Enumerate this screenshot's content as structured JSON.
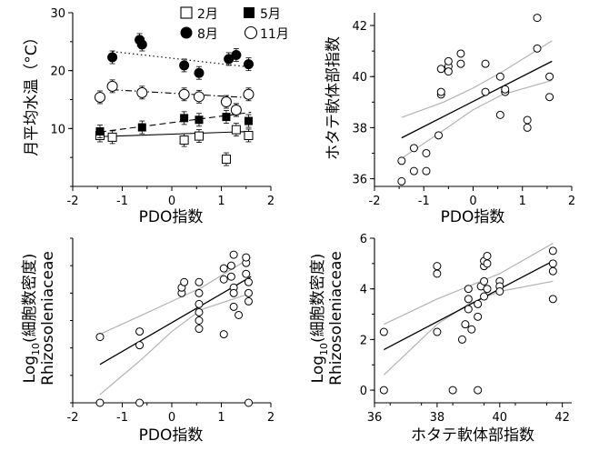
{
  "chart_data": [
    {
      "id": "temp_vs_pdo",
      "type": "scatter",
      "xlabel": "PDO指数",
      "ylabel": "月平均水温（°C）",
      "xlim": [
        -2,
        2
      ],
      "ylim": [
        0,
        30
      ],
      "xticks": [
        "-2",
        "-1",
        "0",
        "1",
        "2"
      ],
      "yticks": [
        "10",
        "20",
        "30"
      ],
      "legend_position": "top-center",
      "series": [
        {
          "name": "2月",
          "marker": "open-square",
          "line": "solid",
          "points": [
            [
              -1.45,
              8.8
            ],
            [
              -1.2,
              8.5
            ],
            [
              0.25,
              8.0
            ],
            [
              0.55,
              8.7
            ],
            [
              1.1,
              4.7
            ],
            [
              1.3,
              9.8
            ],
            [
              1.55,
              8.8
            ]
          ],
          "trend": [
            [
              -1.45,
              8.6
            ],
            [
              1.6,
              9.5
            ]
          ]
        },
        {
          "name": "5月",
          "marker": "filled-square",
          "line": "dashed",
          "points": [
            [
              -1.45,
              9.5
            ],
            [
              -0.6,
              10.2
            ],
            [
              0.25,
              11.8
            ],
            [
              0.55,
              11.5
            ],
            [
              1.1,
              12.0
            ],
            [
              1.3,
              13.2
            ],
            [
              1.55,
              11.3
            ]
          ],
          "trend": [
            [
              -1.45,
              9.4
            ],
            [
              1.6,
              12.8
            ]
          ]
        },
        {
          "name": "8月",
          "marker": "filled-circle",
          "line": "dotted",
          "points": [
            [
              -1.2,
              22.3
            ],
            [
              -0.65,
              25.3
            ],
            [
              -0.6,
              24.5
            ],
            [
              0.25,
              20.9
            ],
            [
              0.55,
              19.6
            ],
            [
              1.15,
              22.0
            ],
            [
              1.3,
              22.7
            ],
            [
              1.55,
              21.1
            ]
          ],
          "trend": [
            [
              -1.2,
              23.3
            ],
            [
              1.6,
              20.6
            ]
          ]
        },
        {
          "name": "11月",
          "marker": "open-circle",
          "line": "dash-dot",
          "points": [
            [
              -1.45,
              15.4
            ],
            [
              -1.2,
              17.3
            ],
            [
              -0.6,
              16.2
            ],
            [
              0.25,
              15.9
            ],
            [
              0.55,
              15.5
            ],
            [
              1.1,
              14.6
            ],
            [
              1.3,
              13.2
            ],
            [
              1.55,
              15.9
            ]
          ],
          "trend": [
            [
              -1.2,
              16.7
            ],
            [
              1.6,
              15.3
            ]
          ]
        }
      ]
    },
    {
      "id": "scallop_vs_pdo",
      "type": "scatter",
      "xlabel": "PDO指数",
      "ylabel": "ホタテ軟体部指数",
      "xlim": [
        -2,
        2
      ],
      "ylim": [
        35.7,
        42.5
      ],
      "xticks": [
        "-2",
        "-1",
        "0",
        "1",
        "2"
      ],
      "yticks": [
        "36",
        "38",
        "40",
        "42"
      ],
      "series": [
        {
          "marker": "open-circle",
          "points": [
            [
              -1.45,
              35.9
            ],
            [
              -1.45,
              36.7
            ],
            [
              -1.2,
              37.2
            ],
            [
              -1.2,
              36.3
            ],
            [
              -0.95,
              37.0
            ],
            [
              -0.95,
              36.3
            ],
            [
              -0.7,
              37.7
            ],
            [
              -0.65,
              39.3
            ],
            [
              -0.65,
              39.4
            ],
            [
              -0.65,
              40.3
            ],
            [
              -0.5,
              40.4
            ],
            [
              -0.5,
              40.6
            ],
            [
              -0.5,
              40.2
            ],
            [
              -0.25,
              40.9
            ],
            [
              -0.25,
              40.5
            ],
            [
              0.25,
              40.5
            ],
            [
              0.25,
              39.4
            ],
            [
              0.55,
              40.0
            ],
            [
              0.55,
              38.5
            ],
            [
              0.65,
              39.4
            ],
            [
              0.65,
              39.5
            ],
            [
              1.1,
              38.3
            ],
            [
              1.1,
              38.0
            ],
            [
              1.3,
              42.3
            ],
            [
              1.3,
              41.1
            ],
            [
              1.55,
              40.0
            ],
            [
              1.55,
              39.2
            ]
          ]
        }
      ],
      "regression": [
        [
          -1.45,
          37.6
        ],
        [
          1.6,
          40.6
        ]
      ],
      "ci_upper": [
        [
          -1.45,
          38.4
        ],
        [
          -0.6,
          39.0
        ],
        [
          0.0,
          39.55
        ],
        [
          0.6,
          40.2
        ],
        [
          1.6,
          41.4
        ]
      ],
      "ci_lower": [
        [
          -1.45,
          36.8
        ],
        [
          -0.6,
          37.9
        ],
        [
          0.0,
          38.7
        ],
        [
          0.6,
          39.3
        ],
        [
          1.6,
          39.85
        ]
      ]
    },
    {
      "id": "diatom_vs_pdo",
      "type": "scatter",
      "xlabel": "PDO指数",
      "ylabel_line1": "Log10(細胞数密度)",
      "ylabel_line2": "Rhizosoleniaceae",
      "ylabel_base": "Log",
      "ylabel_sub": "10",
      "ylabel_rest": "(細胞数密度)",
      "xlim": [
        -2,
        2
      ],
      "ylim": [
        0,
        6
      ],
      "xticks": [
        "-2",
        "-1",
        "0",
        "1",
        "2"
      ],
      "series": [
        {
          "marker": "open-circle",
          "points": [
            [
              -1.45,
              2.4
            ],
            [
              -1.45,
              0.0
            ],
            [
              -0.65,
              2.1
            ],
            [
              -0.65,
              2.6
            ],
            [
              -0.65,
              0.0
            ],
            [
              0.2,
              4.0
            ],
            [
              0.2,
              4.2
            ],
            [
              0.25,
              4.4
            ],
            [
              0.55,
              2.7
            ],
            [
              0.55,
              3.0
            ],
            [
              0.55,
              3.3
            ],
            [
              0.55,
              3.6
            ],
            [
              0.55,
              4.0
            ],
            [
              0.55,
              4.4
            ],
            [
              1.05,
              4.5
            ],
            [
              1.05,
              4.9
            ],
            [
              1.05,
              2.5
            ],
            [
              1.2,
              4.6
            ],
            [
              1.2,
              5.0
            ],
            [
              1.25,
              5.4
            ],
            [
              1.25,
              4.2
            ],
            [
              1.25,
              4.0
            ],
            [
              1.25,
              3.5
            ],
            [
              1.35,
              3.2
            ],
            [
              1.5,
              5.1
            ],
            [
              1.5,
              5.3
            ],
            [
              1.5,
              4.7
            ],
            [
              1.55,
              4.4
            ],
            [
              1.55,
              4.0
            ],
            [
              1.55,
              3.7
            ],
            [
              1.55,
              0.0
            ]
          ]
        }
      ],
      "regression": [
        [
          -1.45,
          1.4
        ],
        [
          1.6,
          4.6
        ]
      ],
      "ci_upper": [
        [
          -1.45,
          2.5
        ],
        [
          -0.6,
          3.2
        ],
        [
          0.0,
          3.7
        ],
        [
          0.6,
          4.2
        ],
        [
          1.6,
          5.3
        ]
      ],
      "ci_lower": [
        [
          -1.45,
          0.3
        ],
        [
          -0.6,
          1.6
        ],
        [
          0.0,
          2.6
        ],
        [
          0.6,
          3.4
        ],
        [
          1.6,
          4.0
        ]
      ]
    },
    {
      "id": "diatom_vs_scallop",
      "type": "scatter",
      "xlabel": "ホタテ軟体部指数",
      "ylabel_line1": "Log10(細胞数密度)",
      "ylabel_line2": "Rhizosoleniaceae",
      "ylabel_base": "Log",
      "ylabel_sub": "10",
      "ylabel_rest": "(細胞数密度)",
      "xlim": [
        36,
        42.3
      ],
      "ylim": [
        -0.5,
        6
      ],
      "xticks": [
        "36",
        "38",
        "40",
        "42"
      ],
      "yticks": [
        "0",
        "2",
        "4",
        "6"
      ],
      "series": [
        {
          "marker": "open-circle",
          "points": [
            [
              36.3,
              2.3
            ],
            [
              36.3,
              0.0
            ],
            [
              38.0,
              4.9
            ],
            [
              38.0,
              4.6
            ],
            [
              38.0,
              2.3
            ],
            [
              38.5,
              0.0
            ],
            [
              38.8,
              2.0
            ],
            [
              38.9,
              2.6
            ],
            [
              39.0,
              3.2
            ],
            [
              39.0,
              3.6
            ],
            [
              39.0,
              4.0
            ],
            [
              39.1,
              2.4
            ],
            [
              39.3,
              2.9
            ],
            [
              39.3,
              3.4
            ],
            [
              39.3,
              0.0
            ],
            [
              39.4,
              4.1
            ],
            [
              39.5,
              3.7
            ],
            [
              39.5,
              4.3
            ],
            [
              39.5,
              4.9
            ],
            [
              39.5,
              5.1
            ],
            [
              39.6,
              5.3
            ],
            [
              39.6,
              5.0
            ],
            [
              39.6,
              4.0
            ],
            [
              40.0,
              4.3
            ],
            [
              40.0,
              4.1
            ],
            [
              40.0,
              3.9
            ],
            [
              41.7,
              5.5
            ],
            [
              41.7,
              5.0
            ],
            [
              41.7,
              4.7
            ],
            [
              41.7,
              3.6
            ]
          ]
        }
      ],
      "regression": [
        [
          36.3,
          1.6
        ],
        [
          41.7,
          5.1
        ]
      ],
      "ci_upper": [
        [
          36.3,
          2.6
        ],
        [
          38.0,
          3.6
        ],
        [
          39.0,
          4.1
        ],
        [
          40.0,
          4.6
        ],
        [
          41.7,
          5.8
        ]
      ],
      "ci_lower": [
        [
          36.3,
          0.6
        ],
        [
          38.0,
          2.6
        ],
        [
          39.0,
          3.4
        ],
        [
          40.0,
          3.9
        ],
        [
          41.7,
          4.3
        ]
      ]
    }
  ]
}
